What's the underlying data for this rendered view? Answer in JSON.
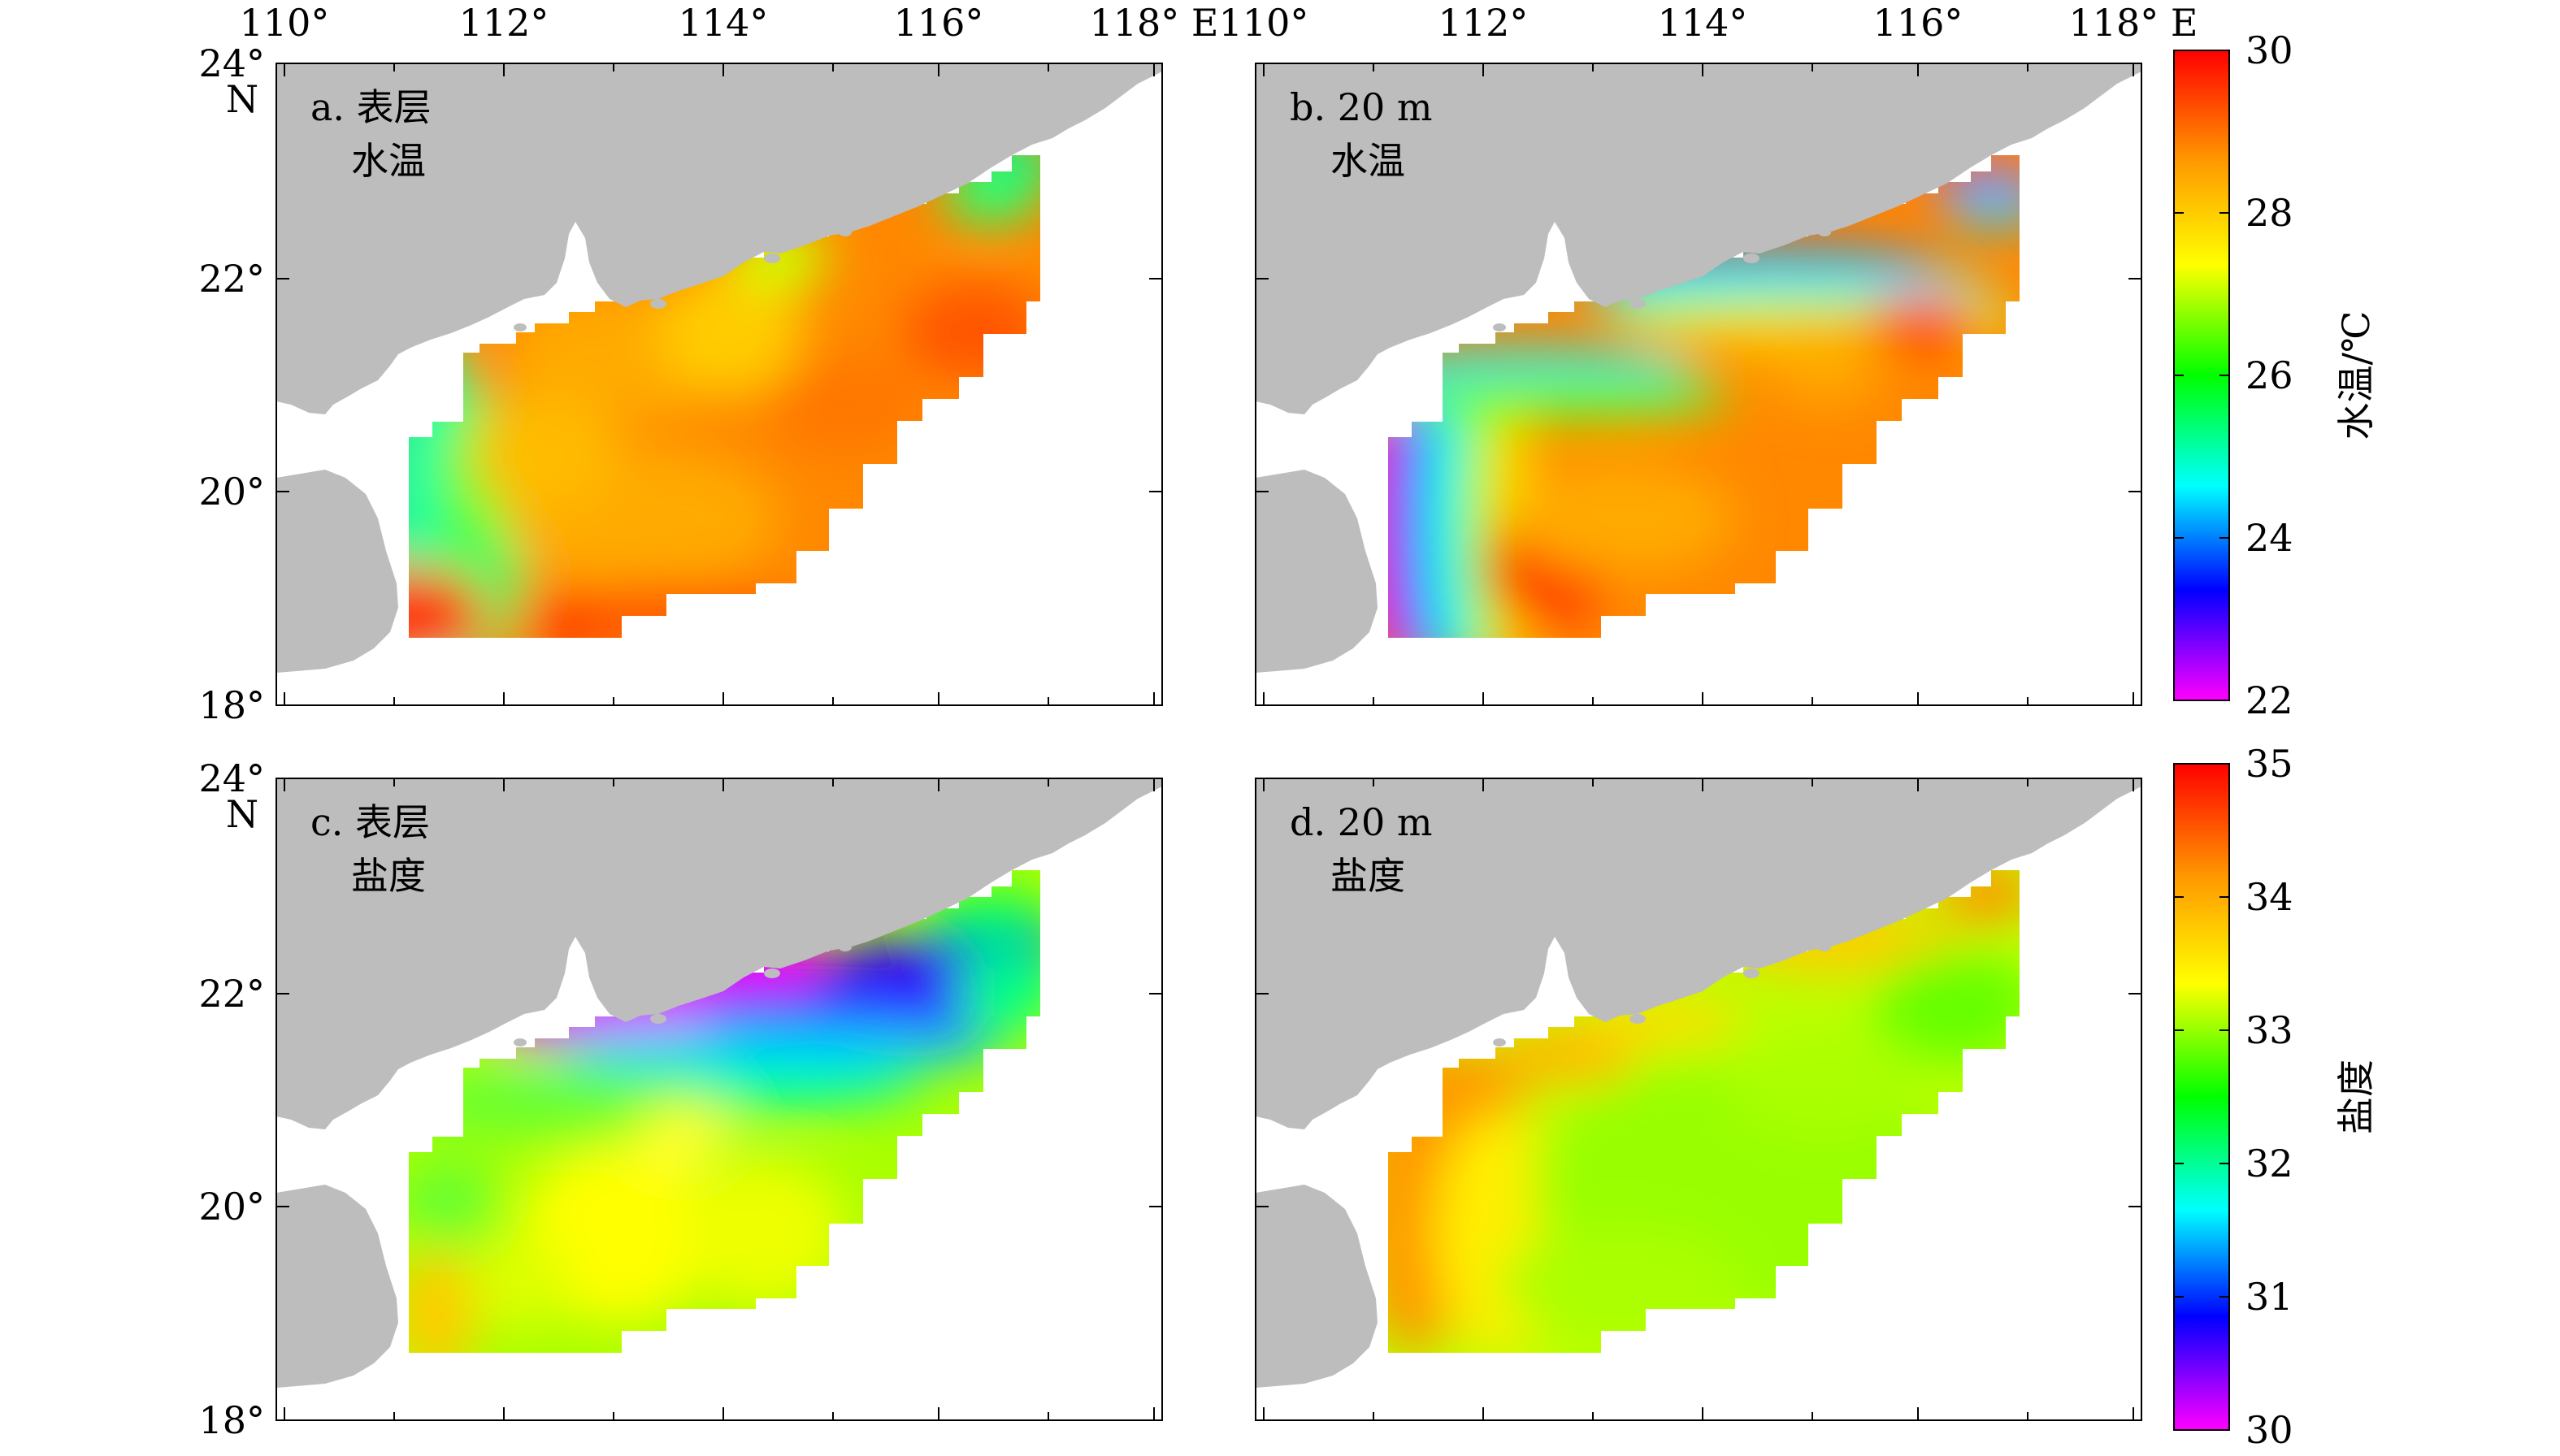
{
  "figure": {
    "x_ticks": [
      "110°",
      "112°",
      "114°",
      "116°",
      "118° E"
    ],
    "y_ticks_left": [
      "24°",
      "22°",
      "20°",
      "18°"
    ],
    "north_label": "N",
    "panels": [
      {
        "id": "a",
        "label": "a. 表层",
        "label2": "水温",
        "variable": "temperature",
        "depth": "surface"
      },
      {
        "id": "b",
        "label": "b. 20 m",
        "label2": "水温",
        "variable": "temperature",
        "depth": "20 m"
      },
      {
        "id": "c",
        "label": "c. 表层",
        "label2": "盐度",
        "variable": "salinity",
        "depth": "surface"
      },
      {
        "id": "d",
        "label": "d. 20 m",
        "label2": "盐度",
        "variable": "salinity",
        "depth": "20 m"
      }
    ],
    "colorbars": [
      {
        "id": "temperature",
        "title": "水温/℃",
        "ticks": [
          "30",
          "28",
          "26",
          "24",
          "22"
        ],
        "min": 22,
        "max": 30
      },
      {
        "id": "salinity",
        "title": "盐度",
        "ticks": [
          "35",
          "34",
          "33",
          "32",
          "31",
          "30"
        ],
        "min": 30,
        "max": 35
      }
    ],
    "colors": {
      "land": "#bdbdbd",
      "colormap": [
        "#ff00ff",
        "#0000ff",
        "#00ffff",
        "#00ff00",
        "#ffff00",
        "#ff9900",
        "#ff0000"
      ]
    }
  },
  "chart_data": {
    "type": "heatmap",
    "lon_range": [
      110,
      118
    ],
    "lat_range": [
      18,
      24
    ],
    "fields": [
      {
        "panel": "a",
        "variable": "水温",
        "unit": "℃",
        "description_values": {
          "coastal_west": 26.5,
          "interior": 28.8,
          "east": 29.2,
          "northeast_edge": 27.5
        }
      },
      {
        "panel": "b",
        "variable": "水温",
        "unit": "℃",
        "description_values": {
          "coast_min": 22.5,
          "interior": 28.8,
          "south": 29.3
        }
      },
      {
        "panel": "c",
        "variable": "盐度",
        "unit": "",
        "description_values": {
          "pearl_river_plume": 30.0,
          "coastal_band": 31.0,
          "interior": 33.5,
          "southwest": 34.0
        }
      },
      {
        "panel": "d",
        "variable": "盐度",
        "unit": "",
        "description_values": {
          "coastal_west": 34.2,
          "interior": 33.3,
          "northeast": 34.0
        }
      }
    ]
  }
}
